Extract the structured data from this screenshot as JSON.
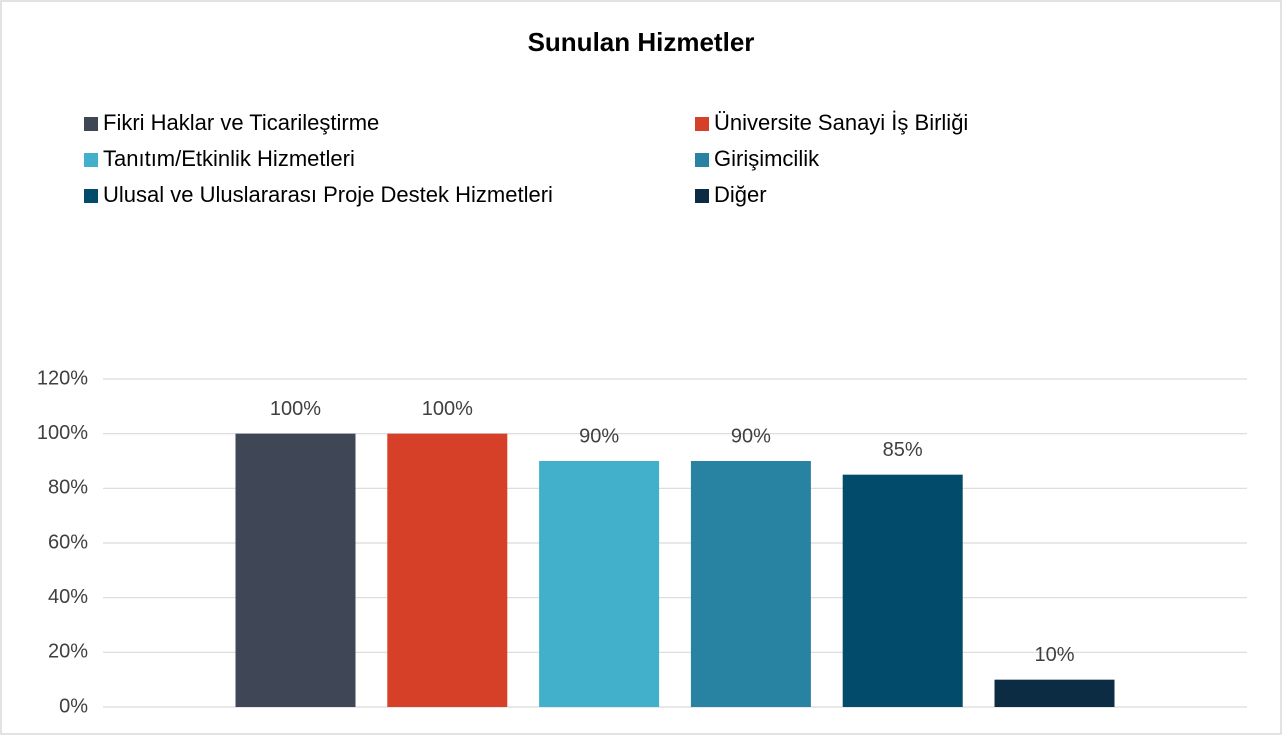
{
  "chart_data": {
    "type": "bar",
    "title": "Sunulan Hizmetler",
    "series": [
      {
        "name": "Fikri Haklar ve Ticarileştirme",
        "color": "#3f4656",
        "values": [
          100
        ],
        "value_labels": [
          "100%"
        ]
      },
      {
        "name": "Üniversite Sanayi İş Birliği",
        "color": "#d63f28",
        "values": [
          100
        ],
        "value_labels": [
          "100%"
        ]
      },
      {
        "name": "Tanıtım/Etkinlik Hizmetleri",
        "color": "#42afcb",
        "values": [
          90
        ],
        "value_labels": [
          "90%"
        ]
      },
      {
        "name": "Girişimcilik",
        "color": "#2882a2",
        "values": [
          90
        ],
        "value_labels": [
          "90%"
        ]
      },
      {
        "name": "Ulusal ve Uluslararası Proje Destek Hizmetleri",
        "color": "#034b6a",
        "values": [
          85
        ],
        "value_labels": [
          "85%"
        ]
      },
      {
        "name": "Diğer",
        "color": "#0c2c44",
        "values": [
          10
        ],
        "value_labels": [
          "10%"
        ]
      }
    ],
    "ylim": [
      0,
      120
    ],
    "yticks": [
      {
        "value": 0,
        "label": "0%"
      },
      {
        "value": 20,
        "label": "20%"
      },
      {
        "value": 40,
        "label": "40%"
      },
      {
        "value": 60,
        "label": "60%"
      },
      {
        "value": 80,
        "label": "80%"
      },
      {
        "value": 100,
        "label": "100%"
      },
      {
        "value": 120,
        "label": "120%"
      }
    ],
    "grid": true,
    "legend": "top"
  }
}
